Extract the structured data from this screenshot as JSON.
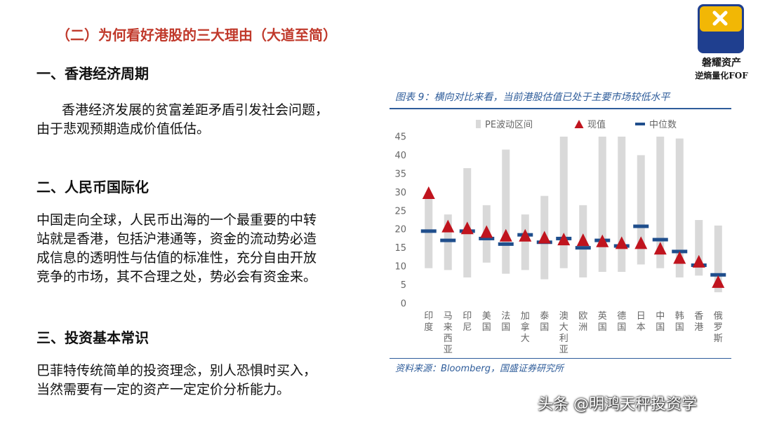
{
  "slide": {
    "title": "（二）为何看好港股的三大理由（大道至简）",
    "section1": {
      "heading": "一、香港经济周期",
      "lines": [
        "香港经济发展的贫富差距矛盾引发社会问题，",
        "由于悲观预期造成价值低估。"
      ]
    },
    "section2": {
      "heading": "二、人民币国际化",
      "lines": [
        "中国走向全球，人民币出海的一个最重要的中转",
        "站就是香港，包括沪港通等，资金的流动势必造",
        "成信息的透明性与估值的标准性，充分自由开放",
        "竞争的市场，其不合理之处，势必会有资金来。"
      ]
    },
    "section3": {
      "heading": "三、投资基本常识",
      "lines": [
        "巴菲特传统简单的投资理念，别人恐惧时买入，",
        "当然需要有一定的资产一定定价分析能力。"
      ]
    }
  },
  "logo": {
    "name": "磐耀资产",
    "tagline": "逆熵量化FOF"
  },
  "figure": {
    "caption": "图表 9：横向对比来看，当前港股估值已处于主要市场较低水平",
    "source": "资料来源：Bloomberg，国盛证券研究所"
  },
  "watermark": "头条 @明鸿天秤投资学",
  "colors": {
    "range": "#d9d9d9",
    "current": "#c0141e",
    "median": "#1f4e8c",
    "caption": "#2e5c9a",
    "title": "#c0392b"
  },
  "chart_data": {
    "type": "range-marker",
    "legend": [
      "PE波动区间",
      "现值",
      "中位数"
    ],
    "legend_position": "top",
    "ylim": [
      0,
      45
    ],
    "yticks": [
      0,
      5,
      10,
      15,
      20,
      25,
      30,
      35,
      40,
      45
    ],
    "categories": [
      "印度",
      "马来西亚",
      "印尼",
      "美国",
      "法国",
      "加拿大",
      "泰国",
      "澳大利亚",
      "欧洲",
      "英国",
      "德国",
      "日本",
      "中国",
      "韩国",
      "香港",
      "俄罗斯"
    ],
    "series": [
      {
        "name": "PE波动区间",
        "values": [
          [
            9.5,
            29
          ],
          [
            9,
            24
          ],
          [
            7,
            36.5
          ],
          [
            11,
            26.5
          ],
          [
            8,
            41.5
          ],
          [
            9,
            24
          ],
          [
            6.5,
            29
          ],
          [
            9.5,
            45
          ],
          [
            7,
            26.5
          ],
          [
            8.5,
            45
          ],
          [
            8.5,
            45
          ],
          [
            10.5,
            40
          ],
          [
            9.5,
            45
          ],
          [
            7,
            44.5
          ],
          [
            7.5,
            22.5
          ],
          [
            3,
            21
          ]
        ]
      },
      {
        "name": "现值",
        "values": [
          29.5,
          20.5,
          20,
          19,
          18,
          18,
          17.5,
          17,
          16.8,
          16.5,
          16,
          16,
          14.5,
          12,
          11,
          5.5
        ]
      },
      {
        "name": "中位数",
        "values": [
          19.5,
          17,
          19.5,
          17.5,
          16,
          18.5,
          16.5,
          17.5,
          15,
          17,
          15.5,
          20.8,
          17.2,
          14,
          10.3,
          7.7
        ]
      }
    ]
  }
}
